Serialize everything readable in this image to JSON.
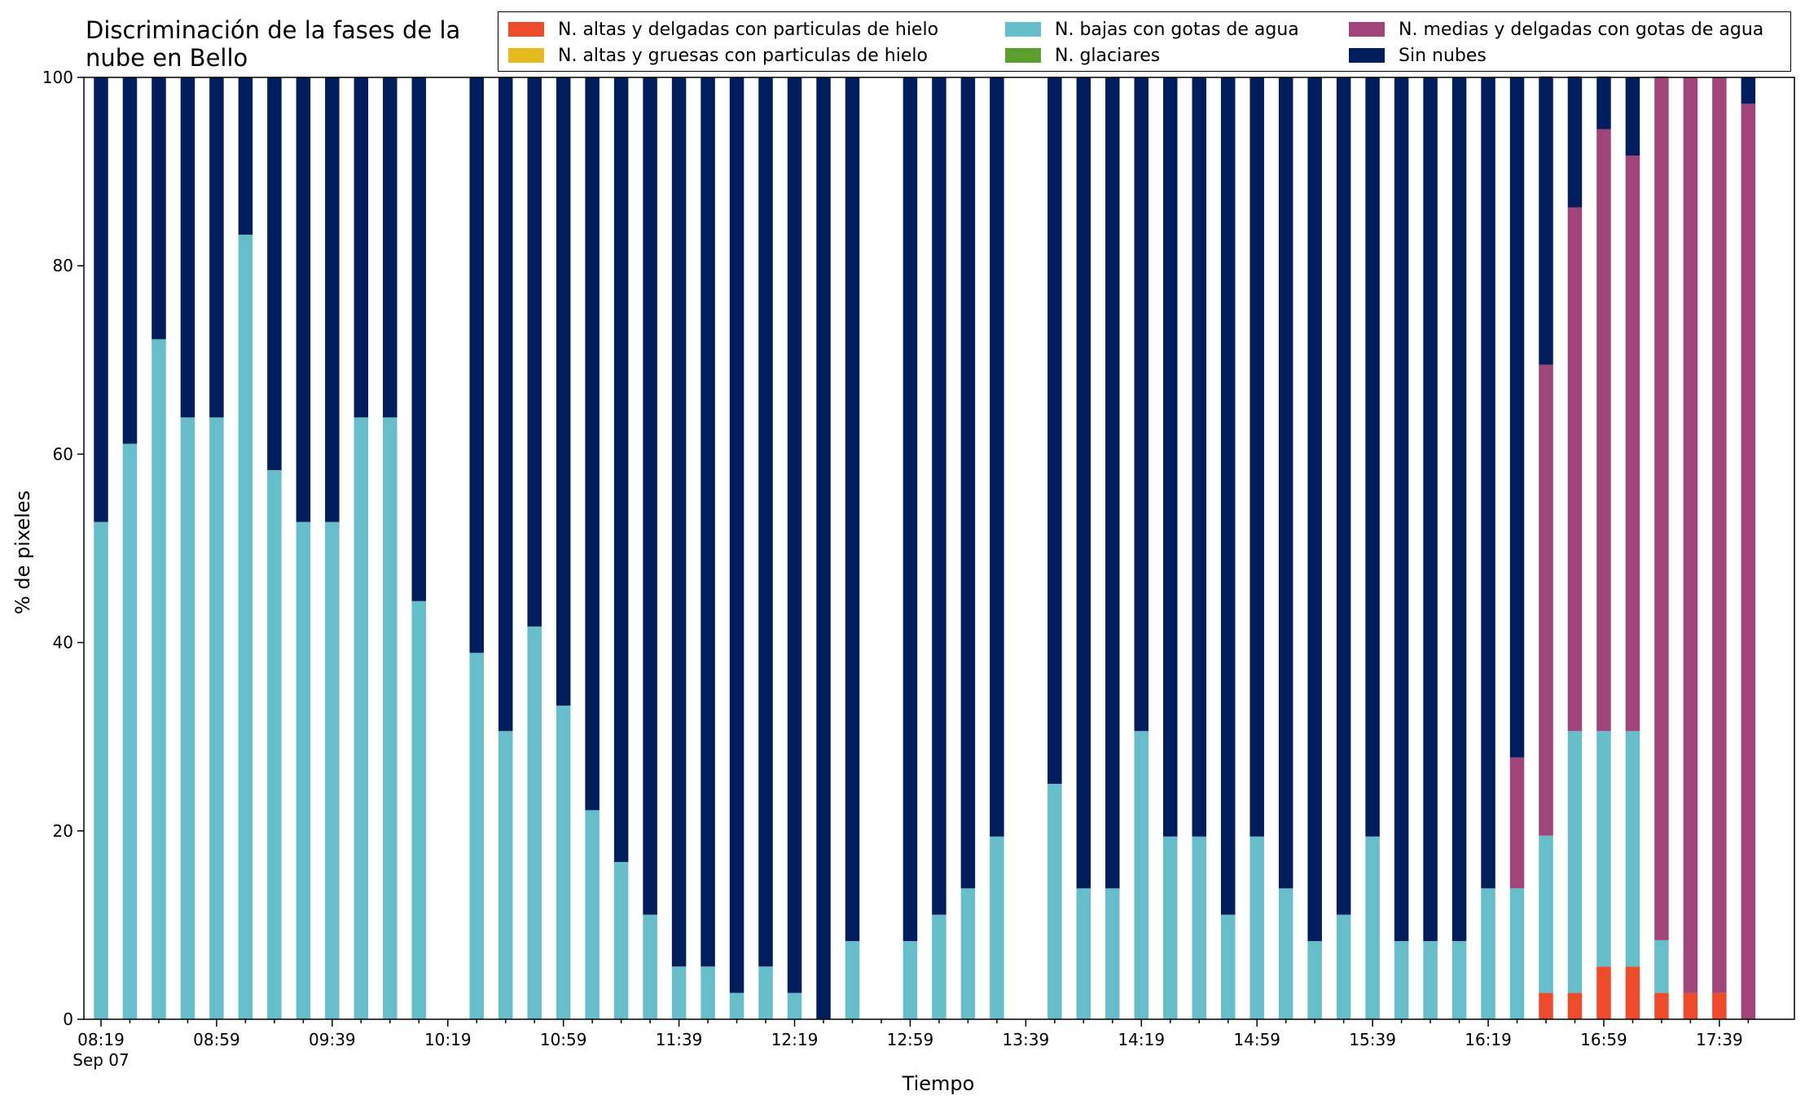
{
  "chart_data": {
    "type": "bar",
    "stacked": true,
    "title": "Discriminación de la fases de la nube en Bello",
    "title_lines": [
      "Discriminación de la fases de la",
      "nube en Bello"
    ],
    "xlabel": "Tiempo",
    "ylabel": "% de pixeles",
    "ylim": [
      0,
      100
    ],
    "yticks": [
      "0",
      "20",
      "40",
      "60",
      "80",
      "100"
    ],
    "x_tick_labels": [
      "08:19",
      "08:59",
      "09:39",
      "10:19",
      "10:59",
      "11:39",
      "12:19",
      "12:59",
      "13:39",
      "14:19",
      "14:59",
      "15:39",
      "16:19",
      "16:59",
      "17:39"
    ],
    "x_date_label": "Sep 07",
    "grid": false,
    "legend_placement": "top, 3 columns",
    "x": [
      "08:19",
      "08:29",
      "08:39",
      "08:49",
      "08:59",
      "09:09",
      "09:19",
      "09:29",
      "09:39",
      "09:49",
      "09:59",
      "10:09",
      "10:19",
      "10:29",
      "10:39",
      "10:49",
      "10:59",
      "11:09",
      "11:19",
      "11:29",
      "11:39",
      "11:49",
      "11:59",
      "12:09",
      "12:19",
      "12:29",
      "12:39",
      "12:49",
      "12:59",
      "13:09",
      "13:19",
      "13:29",
      "13:39",
      "13:49",
      "13:59",
      "14:09",
      "14:19",
      "14:29",
      "14:39",
      "14:49",
      "14:59",
      "15:09",
      "15:19",
      "15:29",
      "15:39",
      "15:49",
      "15:59",
      "16:09",
      "16:19",
      "16:29",
      "16:39",
      "16:49",
      "16:59",
      "17:09",
      "17:19",
      "17:29",
      "17:39",
      "17:49"
    ],
    "series": [
      {
        "name": "N. altas y delgadas con particulas de hielo",
        "color": "#EE4B2B",
        "values": [
          0,
          0,
          0,
          0,
          0,
          0,
          0,
          0,
          0,
          0,
          0,
          0,
          0,
          0,
          0,
          0,
          0,
          0,
          0,
          0,
          0,
          0,
          0,
          0,
          0,
          0,
          0,
          0,
          0,
          0,
          0,
          0,
          0,
          0,
          0,
          0,
          0,
          0,
          0,
          0,
          0,
          0,
          0,
          0,
          0,
          0,
          0,
          0,
          0,
          0,
          2.8,
          2.8,
          5.6,
          5.6,
          2.8,
          2.8,
          2.8,
          0
        ]
      },
      {
        "name": "N. altas y gruesas con particulas de hielo",
        "color": "#E6B91E",
        "values": [
          0,
          0,
          0,
          0,
          0,
          0,
          0,
          0,
          0,
          0,
          0,
          0,
          0,
          0,
          0,
          0,
          0,
          0,
          0,
          0,
          0,
          0,
          0,
          0,
          0,
          0,
          0,
          0,
          0,
          0,
          0,
          0,
          0,
          0,
          0,
          0,
          0,
          0,
          0,
          0,
          0,
          0,
          0,
          0,
          0,
          0,
          0,
          0,
          0,
          0,
          0,
          0,
          0,
          0,
          0,
          0,
          0,
          0
        ]
      },
      {
        "name": "N. bajas con gotas de agua",
        "color": "#65BEC9",
        "values": [
          52.8,
          61.1,
          72.2,
          63.9,
          63.9,
          83.3,
          58.3,
          52.8,
          52.8,
          63.9,
          63.9,
          44.4,
          null,
          38.9,
          30.6,
          41.7,
          33.3,
          22.2,
          16.7,
          11.1,
          5.6,
          5.6,
          2.8,
          5.6,
          2.8,
          0,
          8.3,
          null,
          8.3,
          11.1,
          13.9,
          19.4,
          null,
          25,
          13.9,
          13.9,
          30.6,
          19.4,
          19.4,
          11.1,
          19.4,
          13.9,
          8.3,
          11.1,
          19.4,
          8.3,
          8.3,
          8.3,
          13.9,
          13.9,
          16.7,
          27.8,
          25,
          25,
          5.6,
          0,
          0,
          0
        ]
      },
      {
        "name": "N. glaciares",
        "color": "#5E9E2F",
        "values": [
          0,
          0,
          0,
          0,
          0,
          0,
          0,
          0,
          0,
          0,
          0,
          0,
          0,
          0,
          0,
          0,
          0,
          0,
          0,
          0,
          0,
          0,
          0,
          0,
          0,
          0,
          0,
          0,
          0,
          0,
          0,
          0,
          0,
          0,
          0,
          0,
          0,
          0,
          0,
          0,
          0,
          0,
          0,
          0,
          0,
          0,
          0,
          0,
          0,
          0,
          0,
          0,
          0,
          0,
          0,
          0,
          0,
          0
        ]
      },
      {
        "name": "N. medias y delgadas con gotas de agua",
        "color": "#A14479",
        "values": [
          0,
          0,
          0,
          0,
          0,
          0,
          0,
          0,
          0,
          0,
          0,
          0,
          null,
          0,
          0,
          0,
          0,
          0,
          0,
          0,
          0,
          0,
          0,
          0,
          0,
          0,
          0,
          null,
          0,
          0,
          0,
          0,
          null,
          0,
          0,
          0,
          0,
          0,
          0,
          0,
          0,
          0,
          0,
          0,
          0,
          0,
          0,
          0,
          0,
          13.9,
          50,
          55.6,
          63.9,
          61.1,
          91.7,
          97.2,
          97.2,
          97.2
        ]
      },
      {
        "name": "Sin nubes",
        "color": "#001E5E",
        "values": [
          47.2,
          38.9,
          27.8,
          36.1,
          36.1,
          16.7,
          41.7,
          47.2,
          47.2,
          36.1,
          36.1,
          55.6,
          null,
          61.1,
          69.4,
          58.3,
          66.7,
          77.8,
          83.3,
          88.9,
          94.4,
          94.4,
          97.2,
          94.4,
          97.2,
          100,
          91.7,
          null,
          91.7,
          88.9,
          86.1,
          80.6,
          null,
          75,
          86.1,
          86.1,
          69.4,
          80.6,
          80.6,
          88.9,
          80.6,
          86.1,
          91.7,
          88.9,
          80.6,
          91.7,
          91.7,
          91.7,
          86.1,
          72.2,
          30.6,
          13.9,
          5.6,
          8.3,
          0,
          0,
          0,
          2.8
        ]
      }
    ]
  }
}
